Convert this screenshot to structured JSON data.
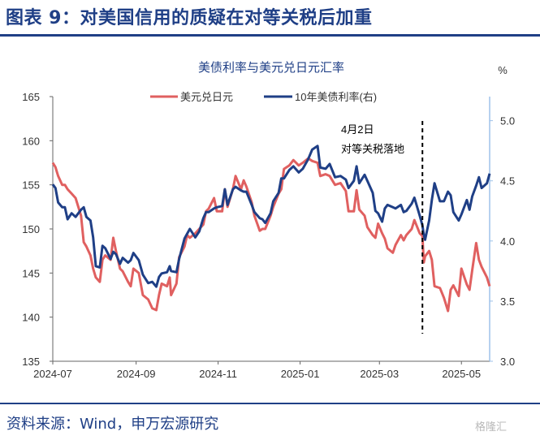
{
  "figure": {
    "title": "图表 9：对美国信用的质疑在对等关税后加重",
    "source": "资料来源：Wind，申万宏源研究",
    "watermark": "格隆汇"
  },
  "chart_data": {
    "type": "line",
    "title": "美债利率与美元兑日元汇率",
    "x_tick_labels": [
      "2024-07",
      "2024-09",
      "2024-11",
      "2025-01",
      "2025-03",
      "2025-05"
    ],
    "x_ticks": [
      "2024-07-01",
      "2024-09-01",
      "2024-11-01",
      "2025-01-01",
      "2025-03-01",
      "2025-05-01"
    ],
    "x_range": [
      "2024-07-01",
      "2025-05-22"
    ],
    "y_left": {
      "ylim": [
        135,
        165
      ],
      "ticks": [
        135,
        140,
        145,
        150,
        155,
        160,
        165
      ]
    },
    "y_right": {
      "unit_label": "%",
      "ylim": [
        3.0,
        5.2
      ],
      "ticks": [
        "3.0",
        "3.5",
        "4.0",
        "4.5",
        "5.0"
      ]
    },
    "legend_position": "top",
    "colors": {
      "usdjpy": "#e06060",
      "yield": "#1f3f86",
      "right_axis": "#9ec2ea",
      "left_axis": "#333333"
    },
    "annotation": {
      "date": "2025-04-02",
      "line1": "4月2日",
      "line2": "对等关税落地"
    },
    "series": [
      {
        "name": "美元兑日元",
        "axis": "left",
        "points": [
          [
            "2024-07-01",
            157.5
          ],
          [
            "2024-07-03",
            157.0
          ],
          [
            "2024-07-05",
            156.0
          ],
          [
            "2024-07-08",
            155.0
          ],
          [
            "2024-07-10",
            155.0
          ],
          [
            "2024-07-12",
            154.5
          ],
          [
            "2024-07-15",
            154.0
          ],
          [
            "2024-07-18",
            153.5
          ],
          [
            "2024-07-22",
            151.5
          ],
          [
            "2024-07-24",
            148.5
          ],
          [
            "2024-07-26",
            148.0
          ],
          [
            "2024-07-29",
            147.0
          ],
          [
            "2024-07-31",
            145.5
          ],
          [
            "2024-08-02",
            144.5
          ],
          [
            "2024-08-05",
            144.0
          ],
          [
            "2024-08-07",
            146.5
          ],
          [
            "2024-08-09",
            147.0
          ],
          [
            "2024-08-13",
            146.5
          ],
          [
            "2024-08-15",
            149.0
          ],
          [
            "2024-08-17",
            147.5
          ],
          [
            "2024-08-20",
            145.5
          ],
          [
            "2024-08-22",
            145.2
          ],
          [
            "2024-08-26",
            144.0
          ],
          [
            "2024-08-28",
            143.5
          ],
          [
            "2024-08-30",
            145.5
          ],
          [
            "2024-09-03",
            145.0
          ],
          [
            "2024-09-06",
            142.5
          ],
          [
            "2024-09-10",
            142.0
          ],
          [
            "2024-09-13",
            141.0
          ],
          [
            "2024-09-16",
            140.8
          ],
          [
            "2024-09-18",
            142.5
          ],
          [
            "2024-09-20",
            143.8
          ],
          [
            "2024-09-24",
            143.5
          ],
          [
            "2024-09-26",
            144.5
          ],
          [
            "2024-09-27",
            142.5
          ],
          [
            "2024-10-01",
            143.8
          ],
          [
            "2024-10-03",
            146.8
          ],
          [
            "2024-10-07",
            148.0
          ],
          [
            "2024-10-09",
            149.3
          ],
          [
            "2024-10-11",
            149.0
          ],
          [
            "2024-10-15",
            149.5
          ],
          [
            "2024-10-18",
            150.0
          ],
          [
            "2024-10-21",
            150.5
          ],
          [
            "2024-10-23",
            152.0
          ],
          [
            "2024-10-25",
            152.3
          ],
          [
            "2024-10-29",
            153.5
          ],
          [
            "2024-10-31",
            152.0
          ],
          [
            "2024-11-04",
            152.0
          ],
          [
            "2024-11-06",
            154.5
          ],
          [
            "2024-11-08",
            152.5
          ],
          [
            "2024-11-12",
            154.5
          ],
          [
            "2024-11-14",
            156.0
          ],
          [
            "2024-11-18",
            154.5
          ],
          [
            "2024-11-20",
            155.5
          ],
          [
            "2024-11-22",
            154.8
          ],
          [
            "2024-11-26",
            153.0
          ],
          [
            "2024-11-28",
            151.5
          ],
          [
            "2024-12-02",
            149.8
          ],
          [
            "2024-12-04",
            150.0
          ],
          [
            "2024-12-06",
            150.0
          ],
          [
            "2024-12-10",
            151.5
          ],
          [
            "2024-12-12",
            152.5
          ],
          [
            "2024-12-16",
            154.0
          ],
          [
            "2024-12-18",
            154.5
          ],
          [
            "2024-12-20",
            156.8
          ],
          [
            "2024-12-24",
            157.2
          ],
          [
            "2024-12-27",
            157.8
          ],
          [
            "2024-12-31",
            157.2
          ],
          [
            "2025-01-03",
            157.5
          ],
          [
            "2025-01-07",
            158.0
          ],
          [
            "2025-01-10",
            157.7
          ],
          [
            "2025-01-14",
            157.5
          ],
          [
            "2025-01-16",
            156.0
          ],
          [
            "2025-01-20",
            156.2
          ],
          [
            "2025-01-23",
            156.0
          ],
          [
            "2025-01-27",
            155.0
          ],
          [
            "2025-01-31",
            155.2
          ],
          [
            "2025-02-04",
            154.3
          ],
          [
            "2025-02-06",
            152.0
          ],
          [
            "2025-02-10",
            152.0
          ],
          [
            "2025-02-12",
            154.4
          ],
          [
            "2025-02-14",
            152.2
          ],
          [
            "2025-02-18",
            151.5
          ],
          [
            "2025-02-20",
            150.2
          ],
          [
            "2025-02-24",
            149.3
          ],
          [
            "2025-02-26",
            149.0
          ],
          [
            "2025-02-28",
            150.6
          ],
          [
            "2025-03-03",
            149.5
          ],
          [
            "2025-03-05",
            148.9
          ],
          [
            "2025-03-07",
            147.8
          ],
          [
            "2025-03-11",
            147.3
          ],
          [
            "2025-03-13",
            148.2
          ],
          [
            "2025-03-17",
            149.3
          ],
          [
            "2025-03-19",
            148.7
          ],
          [
            "2025-03-21",
            149.3
          ],
          [
            "2025-03-25",
            150.0
          ],
          [
            "2025-03-27",
            151.0
          ],
          [
            "2025-03-31",
            149.5
          ],
          [
            "2025-04-02",
            149.2
          ],
          [
            "2025-04-03",
            146.2
          ],
          [
            "2025-04-04",
            146.9
          ],
          [
            "2025-04-07",
            147.5
          ],
          [
            "2025-04-09",
            146.5
          ],
          [
            "2025-04-11",
            143.5
          ],
          [
            "2025-04-15",
            143.3
          ],
          [
            "2025-04-18",
            142.2
          ],
          [
            "2025-04-21",
            140.7
          ],
          [
            "2025-04-23",
            143.1
          ],
          [
            "2025-04-25",
            143.6
          ],
          [
            "2025-04-29",
            142.4
          ],
          [
            "2025-05-01",
            145.5
          ],
          [
            "2025-05-05",
            143.7
          ],
          [
            "2025-05-07",
            143.1
          ],
          [
            "2025-05-09",
            145.3
          ],
          [
            "2025-05-12",
            148.4
          ],
          [
            "2025-05-14",
            146.5
          ],
          [
            "2025-05-16",
            145.7
          ],
          [
            "2025-05-20",
            144.5
          ],
          [
            "2025-05-22",
            143.5
          ]
        ]
      },
      {
        "name": "10年美债利率(右)",
        "axis": "right",
        "points": [
          [
            "2024-07-01",
            4.47
          ],
          [
            "2024-07-03",
            4.44
          ],
          [
            "2024-07-05",
            4.32
          ],
          [
            "2024-07-08",
            4.28
          ],
          [
            "2024-07-10",
            4.28
          ],
          [
            "2024-07-12",
            4.18
          ],
          [
            "2024-07-15",
            4.23
          ],
          [
            "2024-07-18",
            4.2
          ],
          [
            "2024-07-22",
            4.26
          ],
          [
            "2024-07-24",
            4.28
          ],
          [
            "2024-07-26",
            4.2
          ],
          [
            "2024-07-29",
            4.17
          ],
          [
            "2024-07-31",
            4.03
          ],
          [
            "2024-08-02",
            3.79
          ],
          [
            "2024-08-05",
            3.78
          ],
          [
            "2024-08-07",
            3.96
          ],
          [
            "2024-08-09",
            3.94
          ],
          [
            "2024-08-13",
            3.85
          ],
          [
            "2024-08-15",
            3.91
          ],
          [
            "2024-08-17",
            3.89
          ],
          [
            "2024-08-20",
            3.81
          ],
          [
            "2024-08-22",
            3.86
          ],
          [
            "2024-08-26",
            3.82
          ],
          [
            "2024-08-28",
            3.84
          ],
          [
            "2024-08-30",
            3.9
          ],
          [
            "2024-09-03",
            3.84
          ],
          [
            "2024-09-06",
            3.72
          ],
          [
            "2024-09-10",
            3.65
          ],
          [
            "2024-09-13",
            3.66
          ],
          [
            "2024-09-16",
            3.62
          ],
          [
            "2024-09-18",
            3.7
          ],
          [
            "2024-09-20",
            3.73
          ],
          [
            "2024-09-24",
            3.74
          ],
          [
            "2024-09-26",
            3.79
          ],
          [
            "2024-09-27",
            3.75
          ],
          [
            "2024-10-01",
            3.74
          ],
          [
            "2024-10-03",
            3.85
          ],
          [
            "2024-10-07",
            4.02
          ],
          [
            "2024-10-09",
            4.06
          ],
          [
            "2024-10-11",
            4.1
          ],
          [
            "2024-10-15",
            4.03
          ],
          [
            "2024-10-18",
            4.08
          ],
          [
            "2024-10-21",
            4.19
          ],
          [
            "2024-10-23",
            4.24
          ],
          [
            "2024-10-25",
            4.24
          ],
          [
            "2024-10-29",
            4.27
          ],
          [
            "2024-10-31",
            4.28
          ],
          [
            "2024-11-04",
            4.29
          ],
          [
            "2024-11-06",
            4.43
          ],
          [
            "2024-11-08",
            4.3
          ],
          [
            "2024-11-12",
            4.43
          ],
          [
            "2024-11-14",
            4.45
          ],
          [
            "2024-11-18",
            4.42
          ],
          [
            "2024-11-20",
            4.41
          ],
          [
            "2024-11-22",
            4.41
          ],
          [
            "2024-11-26",
            4.3
          ],
          [
            "2024-11-28",
            4.24
          ],
          [
            "2024-12-02",
            4.19
          ],
          [
            "2024-12-04",
            4.18
          ],
          [
            "2024-12-06",
            4.15
          ],
          [
            "2024-12-10",
            4.23
          ],
          [
            "2024-12-12",
            4.33
          ],
          [
            "2024-12-16",
            4.4
          ],
          [
            "2024-12-18",
            4.52
          ],
          [
            "2024-12-20",
            4.52
          ],
          [
            "2024-12-24",
            4.59
          ],
          [
            "2024-12-27",
            4.62
          ],
          [
            "2024-12-31",
            4.57
          ],
          [
            "2025-01-03",
            4.6
          ],
          [
            "2025-01-07",
            4.68
          ],
          [
            "2025-01-10",
            4.76
          ],
          [
            "2025-01-14",
            4.79
          ],
          [
            "2025-01-16",
            4.61
          ],
          [
            "2025-01-20",
            4.6
          ],
          [
            "2025-01-23",
            4.64
          ],
          [
            "2025-01-27",
            4.53
          ],
          [
            "2025-01-31",
            4.54
          ],
          [
            "2025-02-04",
            4.51
          ],
          [
            "2025-02-06",
            4.44
          ],
          [
            "2025-02-10",
            4.5
          ],
          [
            "2025-02-12",
            4.62
          ],
          [
            "2025-02-14",
            4.48
          ],
          [
            "2025-02-18",
            4.55
          ],
          [
            "2025-02-20",
            4.5
          ],
          [
            "2025-02-24",
            4.4
          ],
          [
            "2025-02-26",
            4.25
          ],
          [
            "2025-02-28",
            4.23
          ],
          [
            "2025-03-03",
            4.16
          ],
          [
            "2025-03-05",
            4.27
          ],
          [
            "2025-03-07",
            4.3
          ],
          [
            "2025-03-11",
            4.28
          ],
          [
            "2025-03-13",
            4.27
          ],
          [
            "2025-03-17",
            4.3
          ],
          [
            "2025-03-19",
            4.24
          ],
          [
            "2025-03-21",
            4.25
          ],
          [
            "2025-03-25",
            4.31
          ],
          [
            "2025-03-27",
            4.36
          ],
          [
            "2025-03-31",
            4.21
          ],
          [
            "2025-04-02",
            4.13
          ],
          [
            "2025-04-03",
            4.05
          ],
          [
            "2025-04-04",
            4.01
          ],
          [
            "2025-04-07",
            4.17
          ],
          [
            "2025-04-09",
            4.34
          ],
          [
            "2025-04-11",
            4.48
          ],
          [
            "2025-04-15",
            4.33
          ],
          [
            "2025-04-18",
            4.33
          ],
          [
            "2025-04-21",
            4.41
          ],
          [
            "2025-04-23",
            4.38
          ],
          [
            "2025-04-25",
            4.24
          ],
          [
            "2025-04-29",
            4.17
          ],
          [
            "2025-05-01",
            4.22
          ],
          [
            "2025-05-05",
            4.34
          ],
          [
            "2025-05-07",
            4.26
          ],
          [
            "2025-05-09",
            4.37
          ],
          [
            "2025-05-12",
            4.46
          ],
          [
            "2025-05-14",
            4.53
          ],
          [
            "2025-05-16",
            4.44
          ],
          [
            "2025-05-20",
            4.48
          ],
          [
            "2025-05-22",
            4.56
          ]
        ]
      }
    ]
  }
}
